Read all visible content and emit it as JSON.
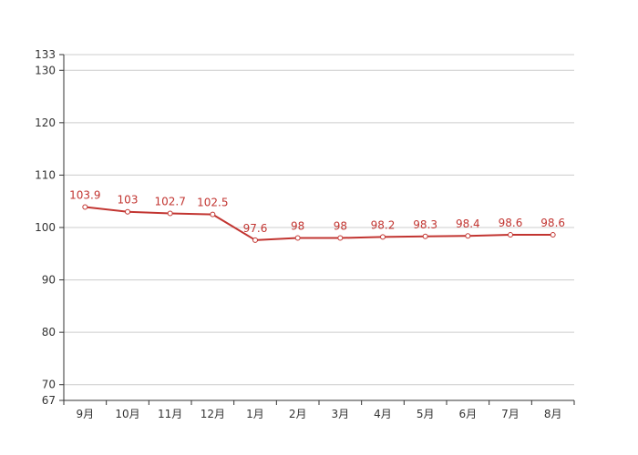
{
  "chart_data": {
    "type": "line",
    "categories": [
      "9月",
      "10月",
      "11月",
      "12月",
      "1月",
      "2月",
      "3月",
      "4月",
      "5月",
      "6月",
      "7月",
      "8月"
    ],
    "series": [
      {
        "values": [
          103.9,
          103,
          102.7,
          102.5,
          97.6,
          98,
          98,
          98.2,
          98.3,
          98.4,
          98.6,
          98.6
        ]
      }
    ],
    "data_labels": [
      "103.9",
      "103",
      "102.7",
      "102.5",
      "97.6",
      "98",
      "98",
      "98.2",
      "98.3",
      "98.4",
      "98.6",
      "98.6"
    ],
    "y_ticks": [
      "67",
      "70",
      "80",
      "90",
      "100",
      "110",
      "120",
      "130",
      "133"
    ],
    "ylim": [
      67,
      133
    ],
    "grid": "horizontal",
    "legend": "none",
    "colors": {
      "line": "#c23531",
      "grid": "#cccccc",
      "axis": "#333333",
      "marker_fill": "#ffffff"
    }
  }
}
